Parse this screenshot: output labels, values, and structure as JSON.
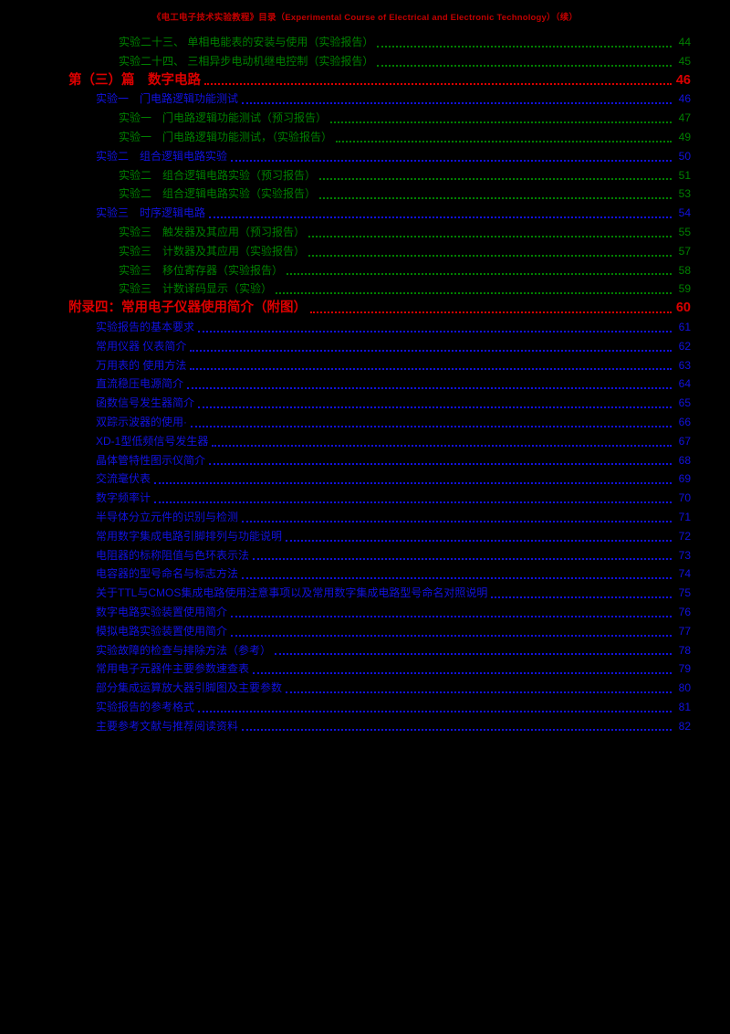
{
  "colors": {
    "background": "#000000",
    "green": "#008000",
    "blue": "#1212E0",
    "red": "#DC0000",
    "header_red": "#C00000"
  },
  "header": {
    "title": "《电工电子技术实验教程》目录（Experimental Course of Electrical and Electronic Technology）（续）"
  },
  "toc": {
    "entries": [
      {
        "level": 3,
        "color": "green",
        "label": "实验二十三、 单相电能表的安装与使用（实验报告）",
        "page": "44"
      },
      {
        "level": 3,
        "color": "green",
        "label": "实验二十四、 三相异步电动机继电控制（实验报告）",
        "page": "45"
      },
      {
        "level": 1,
        "color": "red",
        "label": "第（三）篇　数字电路",
        "page": "46"
      },
      {
        "level": 2,
        "color": "blue",
        "label": "实验一　门电路逻辑功能测试",
        "page": "46"
      },
      {
        "level": 3,
        "color": "green",
        "label": "实验一　门电路逻辑功能测试（预习报告）",
        "page": "47"
      },
      {
        "level": 3,
        "color": "green",
        "label": "实验一　门电路逻辑功能测试，（实验报告）",
        "page": "49"
      },
      {
        "level": 2,
        "color": "blue",
        "label": "实验二　组合逻辑电路实验",
        "page": "50"
      },
      {
        "level": 3,
        "color": "green",
        "label": "实验二　组合逻辑电路实验（预习报告）",
        "page": "51"
      },
      {
        "level": 3,
        "color": "green",
        "label": "实验二　组合逻辑电路实验（实验报告）",
        "page": "53"
      },
      {
        "level": 2,
        "color": "blue",
        "label": "实验三　时序逻辑电路",
        "page": "54"
      },
      {
        "level": 3,
        "color": "green",
        "label": "实验三　触发器及其应用（预习报告）",
        "page": "55"
      },
      {
        "level": 3,
        "color": "green",
        "label": "实验三　计数器及其应用（实验报告）",
        "page": "57"
      },
      {
        "level": 3,
        "color": "green",
        "label": "实验三　移位寄存器（实验报告）",
        "page": "58"
      },
      {
        "level": 3,
        "color": "green",
        "label": "实验三　计数译码显示（实验）",
        "page": "59"
      },
      {
        "level": 1,
        "color": "red",
        "label": "附录四：常用电子仪器使用简介（附图）",
        "page": "60"
      },
      {
        "level": 2,
        "color": "blue",
        "label": "实验报告的基本要求",
        "page": "61"
      },
      {
        "level": 2,
        "color": "blue",
        "label": "常用仪器 仪表简介",
        "page": "62"
      },
      {
        "level": 2,
        "color": "blue",
        "label": "万用表的 使用方法",
        "page": "63"
      },
      {
        "level": 2,
        "color": "blue",
        "label": "直流稳压电源简介",
        "page": "64"
      },
      {
        "level": 2,
        "color": "blue",
        "label": "函数信号发生器简介",
        "page": "65"
      },
      {
        "level": 2,
        "color": "blue",
        "label": "双踪示波器的使用·",
        "page": "66"
      },
      {
        "level": 2,
        "color": "blue",
        "label": "XD-1型低频信号发生器",
        "page": "67"
      },
      {
        "level": 2,
        "color": "blue",
        "label": "晶体管特性图示仪简介",
        "page": "68"
      },
      {
        "level": 2,
        "color": "blue",
        "label": "交流毫伏表",
        "page": "69"
      },
      {
        "level": 2,
        "color": "blue",
        "label": "数字频率计",
        "page": "70"
      },
      {
        "level": 2,
        "color": "blue",
        "label": "半导体分立元件的识别与检测",
        "page": "71"
      },
      {
        "level": 2,
        "color": "blue",
        "label": "常用数字集成电路引脚排列与功能说明",
        "page": "72"
      },
      {
        "level": 2,
        "color": "blue",
        "label": "电阻器的标称阻值与色环表示法",
        "page": "73"
      },
      {
        "level": 2,
        "color": "blue",
        "label": "电容器的型号命名与标志方法",
        "page": "74"
      },
      {
        "level": 2,
        "color": "blue",
        "label": "关于TTL与CMOS集成电路使用注意事项以及常用数字集成电路型号命名对照说明",
        "page": "75"
      },
      {
        "level": 2,
        "color": "blue",
        "label": "数字电路实验装置使用简介",
        "page": "76"
      },
      {
        "level": 2,
        "color": "blue",
        "label": "模拟电路实验装置使用简介",
        "page": "77"
      },
      {
        "level": 2,
        "color": "blue",
        "label": "实验故障的检查与排除方法（参考）",
        "page": "78"
      },
      {
        "level": 2,
        "color": "blue",
        "label": "常用电子元器件主要参数速查表",
        "page": "79"
      },
      {
        "level": 2,
        "color": "blue",
        "label": "部分集成运算放大器引脚图及主要参数",
        "page": "80"
      },
      {
        "level": 2,
        "color": "blue",
        "label": "实验报告的参考格式",
        "page": "81"
      },
      {
        "level": 2,
        "color": "blue",
        "label": "主要参考文献与推荐阅读资料",
        "page": "82"
      }
    ]
  }
}
